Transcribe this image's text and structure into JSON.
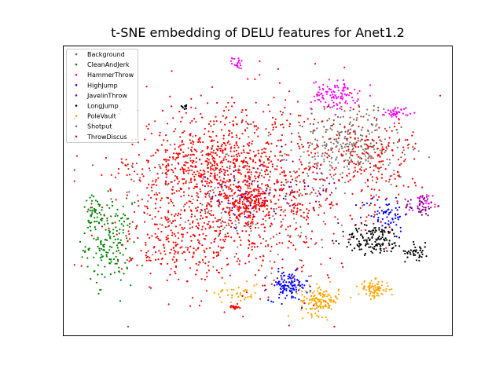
{
  "chart_data": {
    "type": "scatter",
    "title": "t-SNE embedding of DELU features for Anet1.2",
    "xlabel": "",
    "ylabel": "",
    "axes_ticks": "none",
    "grid": false,
    "legend_position": "top-left",
    "series": [
      {
        "name": "Background",
        "color": "#8c564b",
        "clusters": [
          {
            "cx": 0.72,
            "cy": 0.7,
            "rx": 0.12,
            "ry": 0.12,
            "n": 120
          },
          {
            "cx": 0.4,
            "cy": 0.55,
            "rx": 0.3,
            "ry": 0.25,
            "n": 100
          },
          {
            "cx": 0.78,
            "cy": 0.66,
            "rx": 0.1,
            "ry": 0.1,
            "n": 60
          }
        ]
      },
      {
        "name": "CleanAndJerk",
        "color": "#008000",
        "clusters": [
          {
            "cx": 0.12,
            "cy": 0.32,
            "rx": 0.06,
            "ry": 0.14,
            "n": 170
          },
          {
            "cx": 0.08,
            "cy": 0.42,
            "rx": 0.03,
            "ry": 0.06,
            "n": 40
          }
        ]
      },
      {
        "name": "HammerThrow",
        "color": "#ff00ff",
        "clusters": [
          {
            "cx": 0.7,
            "cy": 0.83,
            "rx": 0.06,
            "ry": 0.05,
            "n": 110
          },
          {
            "cx": 0.86,
            "cy": 0.77,
            "rx": 0.03,
            "ry": 0.02,
            "n": 40
          },
          {
            "cx": 0.45,
            "cy": 0.94,
            "rx": 0.015,
            "ry": 0.02,
            "n": 20
          },
          {
            "cx": 0.92,
            "cy": 0.45,
            "rx": 0.03,
            "ry": 0.04,
            "n": 25
          }
        ]
      },
      {
        "name": "HighJump",
        "color": "#0000ff",
        "clusters": [
          {
            "cx": 0.58,
            "cy": 0.17,
            "rx": 0.05,
            "ry": 0.05,
            "n": 120
          },
          {
            "cx": 0.83,
            "cy": 0.42,
            "rx": 0.06,
            "ry": 0.06,
            "n": 70
          },
          {
            "cx": 0.48,
            "cy": 0.48,
            "rx": 0.1,
            "ry": 0.1,
            "n": 50
          }
        ]
      },
      {
        "name": "JavelinThrow",
        "color": "#800080",
        "clusters": [
          {
            "cx": 0.92,
            "cy": 0.45,
            "rx": 0.04,
            "ry": 0.04,
            "n": 40
          },
          {
            "cx": 0.6,
            "cy": 0.5,
            "rx": 0.15,
            "ry": 0.12,
            "n": 40
          }
        ]
      },
      {
        "name": "LongJump",
        "color": "#000000",
        "clusters": [
          {
            "cx": 0.8,
            "cy": 0.33,
            "rx": 0.08,
            "ry": 0.05,
            "n": 140
          },
          {
            "cx": 0.91,
            "cy": 0.29,
            "rx": 0.03,
            "ry": 0.03,
            "n": 40
          },
          {
            "cx": 0.31,
            "cy": 0.79,
            "rx": 0.015,
            "ry": 0.01,
            "n": 10
          }
        ]
      },
      {
        "name": "PoleVault",
        "color": "#ffa500",
        "clusters": [
          {
            "cx": 0.66,
            "cy": 0.12,
            "rx": 0.05,
            "ry": 0.05,
            "n": 140
          },
          {
            "cx": 0.8,
            "cy": 0.16,
            "rx": 0.04,
            "ry": 0.03,
            "n": 90
          },
          {
            "cx": 0.45,
            "cy": 0.15,
            "rx": 0.06,
            "ry": 0.04,
            "n": 40
          }
        ]
      },
      {
        "name": "Shotput",
        "color": "#808080",
        "clusters": [
          {
            "cx": 0.74,
            "cy": 0.62,
            "rx": 0.14,
            "ry": 0.12,
            "n": 150
          },
          {
            "cx": 0.45,
            "cy": 0.45,
            "rx": 0.25,
            "ry": 0.2,
            "n": 180
          }
        ]
      },
      {
        "name": "ThrowDiscus",
        "color": "#ff0000",
        "clusters": [
          {
            "cx": 0.45,
            "cy": 0.5,
            "rx": 0.3,
            "ry": 0.3,
            "n": 1200
          },
          {
            "cx": 0.48,
            "cy": 0.46,
            "rx": 0.05,
            "ry": 0.04,
            "n": 120
          },
          {
            "cx": 0.35,
            "cy": 0.6,
            "rx": 0.15,
            "ry": 0.1,
            "n": 200
          },
          {
            "cx": 0.8,
            "cy": 0.6,
            "rx": 0.12,
            "ry": 0.15,
            "n": 150
          },
          {
            "cx": 0.44,
            "cy": 0.1,
            "rx": 0.012,
            "ry": 0.01,
            "n": 20
          },
          {
            "cx": 0.3,
            "cy": 0.3,
            "rx": 0.12,
            "ry": 0.1,
            "n": 120
          }
        ]
      }
    ]
  }
}
